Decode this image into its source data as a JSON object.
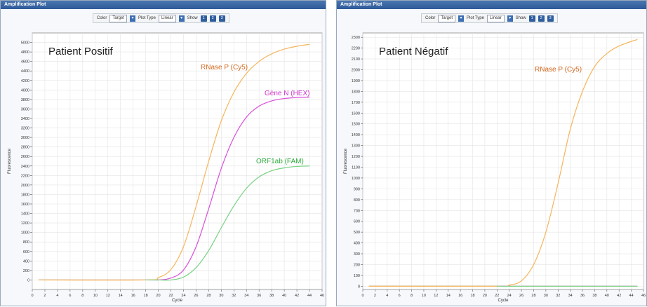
{
  "panels": [
    {
      "window_title": "Amplification Plot",
      "toolbar": {
        "color_label": "Color",
        "color_value": "Target",
        "plot_type_label": "Plot Type",
        "plot_type_value": "Linear",
        "show_label": "Show",
        "show_buttons": [
          "1",
          "2",
          "3"
        ]
      },
      "plot_title": "Patient Positif"
    },
    {
      "window_title": "Amplification Plot",
      "toolbar": {
        "color_label": "Color",
        "color_value": "Target",
        "plot_type_label": "Plot Type",
        "plot_type_value": "Linear",
        "show_label": "Show",
        "show_buttons": [
          "1",
          "2",
          "3"
        ]
      },
      "plot_title": "Patient Négatif"
    }
  ],
  "chart_data": [
    {
      "type": "line",
      "title": "Patient Positif",
      "xlabel": "Cycle",
      "ylabel": "Fluorescence",
      "xlim": [
        0,
        46
      ],
      "ylim": [
        -200,
        5200
      ],
      "xticks": [
        0,
        2,
        4,
        6,
        8,
        10,
        12,
        14,
        16,
        18,
        20,
        22,
        24,
        26,
        28,
        30,
        32,
        34,
        36,
        38,
        40,
        42,
        44,
        46
      ],
      "yticks": [
        0,
        200,
        400,
        600,
        800,
        1000,
        1200,
        1400,
        1600,
        1800,
        2000,
        2200,
        2400,
        2600,
        2800,
        3000,
        3200,
        3400,
        3600,
        3800,
        4000,
        4200,
        4400,
        4600,
        4800,
        5000
      ],
      "grid": true,
      "x": [
        1,
        18,
        20,
        22,
        24,
        26,
        28,
        30,
        32,
        34,
        36,
        38,
        40,
        42,
        44
      ],
      "series": [
        {
          "name": "RNase P (Cy5)",
          "color": "#f5b55c",
          "label_color": "#d2691e",
          "values": [
            0,
            0,
            50,
            220,
            700,
            1550,
            2500,
            3350,
            3950,
            4350,
            4600,
            4760,
            4860,
            4920,
            4960
          ]
        },
        {
          "name": "Gène N (HEX)",
          "color": "#d94fd9",
          "label_color": "#cc33cc",
          "values": [
            0,
            0,
            0,
            40,
            210,
            700,
            1500,
            2350,
            3000,
            3430,
            3660,
            3770,
            3820,
            3840,
            3850
          ]
        },
        {
          "name": "ORF1ab (FAM)",
          "color": "#79d182",
          "label_color": "#2eaa3e",
          "values": [
            0,
            0,
            0,
            0,
            60,
            260,
            620,
            1100,
            1560,
            1930,
            2170,
            2300,
            2360,
            2390,
            2400
          ]
        }
      ]
    },
    {
      "type": "line",
      "title": "Patient Négatif",
      "xlabel": "Cycle",
      "ylabel": "Fluorescence",
      "xlim": [
        0,
        46
      ],
      "ylim": [
        -30,
        2340
      ],
      "xticks": [
        0,
        2,
        4,
        6,
        8,
        10,
        12,
        14,
        16,
        18,
        20,
        22,
        24,
        26,
        28,
        30,
        32,
        34,
        36,
        38,
        40,
        42,
        44,
        46
      ],
      "yticks": [
        0,
        100,
        200,
        300,
        400,
        500,
        600,
        700,
        800,
        900,
        1000,
        1100,
        1200,
        1300,
        1400,
        1500,
        1600,
        1700,
        1800,
        1900,
        2000,
        2100,
        2200,
        2300
      ],
      "grid": true,
      "x": [
        1,
        22,
        24,
        26,
        28,
        30,
        32,
        34,
        36,
        38,
        40,
        42,
        45
      ],
      "series": [
        {
          "name": "RNase P (Cy5)",
          "color": "#f5b55c",
          "label_color": "#d2691e",
          "values": [
            0,
            0,
            10,
            50,
            200,
            500,
            950,
            1450,
            1800,
            2030,
            2150,
            2220,
            2280
          ]
        },
        {
          "name": "",
          "color": "#d94fd9",
          "values": [
            0,
            0,
            0,
            0,
            0,
            0,
            0,
            0,
            0,
            0,
            0,
            0,
            0
          ]
        },
        {
          "name": "",
          "color": "#79d182",
          "values": [
            0,
            0,
            0,
            0,
            0,
            0,
            0,
            0,
            0,
            0,
            0,
            0,
            0
          ]
        }
      ]
    }
  ]
}
